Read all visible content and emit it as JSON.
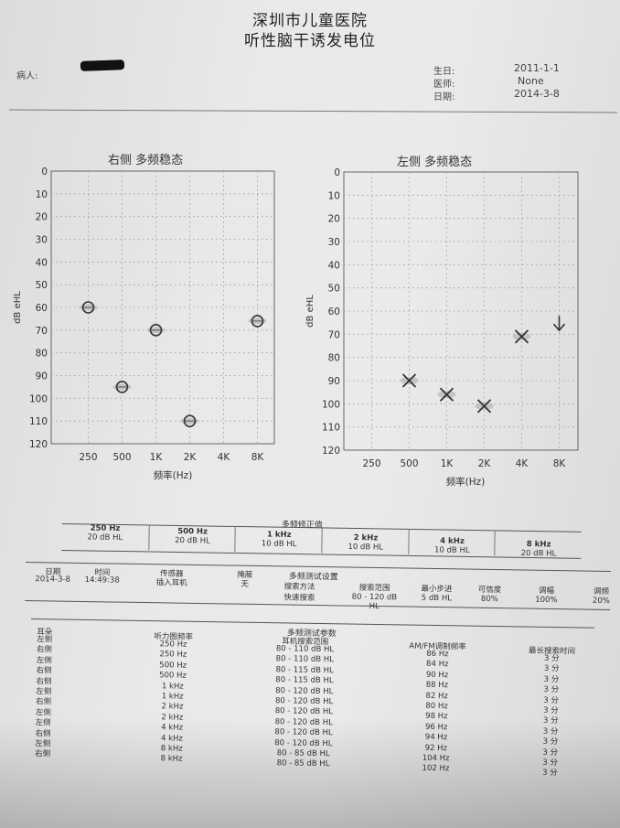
{
  "header": {
    "hospital": "深圳市儿童医院",
    "report_title": "听性脑干诱发电位",
    "patient_label": "病人:",
    "birthdate_label": "生日:",
    "birthdate_value": "2011-1-1",
    "doctor_label": "医师:",
    "doctor_value": "None",
    "date_label": "日期:",
    "date_value": "2014-3-8"
  },
  "charts": {
    "right": {
      "title": "右侧  多频稳态"
    },
    "left": {
      "title": "左侧  多频稳态"
    }
  },
  "chart_data": [
    {
      "type": "scatter",
      "title": "右侧  多频稳态",
      "ylabel": "dB eHL",
      "xlabel": "频率(Hz)",
      "categories": [
        "250",
        "500",
        "1K",
        "2K",
        "4K",
        "8K"
      ],
      "y_ticks": [
        "0",
        "10",
        "20",
        "30",
        "40",
        "50",
        "60",
        "70",
        "80",
        "90",
        "100",
        "110",
        "120"
      ],
      "ylim": [
        0,
        120
      ],
      "y_inverted": true,
      "grid": "dashed",
      "marker": "circle",
      "points": [
        {
          "x": "250",
          "y": 60
        },
        {
          "x": "500",
          "y": 95
        },
        {
          "x": "1K",
          "y": 70
        },
        {
          "x": "2K",
          "y": 110
        },
        {
          "x": "8K",
          "y": 66
        }
      ]
    },
    {
      "type": "scatter",
      "title": "左侧  多频稳态",
      "ylabel": "dB eHL",
      "xlabel": "频率(Hz)",
      "categories": [
        "250",
        "500",
        "1K",
        "2K",
        "4K",
        "8K"
      ],
      "y_ticks": [
        "0",
        "10",
        "20",
        "30",
        "40",
        "50",
        "60",
        "70",
        "80",
        "90",
        "100",
        "110",
        "120"
      ],
      "ylim": [
        0,
        120
      ],
      "y_inverted": true,
      "grid": "dashed",
      "marker": "x",
      "points": [
        {
          "x": "500",
          "y": 90
        },
        {
          "x": "1K",
          "y": 96
        },
        {
          "x": "2K",
          "y": 101
        },
        {
          "x": "4K",
          "y": 71
        },
        {
          "x": "8K",
          "y": 66,
          "marker": "arrow-down",
          "note": "no response"
        }
      ]
    }
  ],
  "correction": {
    "title": "多频修正值",
    "columns": [
      {
        "freq": "250 Hz",
        "value": "20 dB HL"
      },
      {
        "freq": "500 Hz",
        "value": "20 dB HL"
      },
      {
        "freq": "1 kHz",
        "value": "10 dB HL"
      },
      {
        "freq": "2 kHz",
        "value": "10 dB HL"
      },
      {
        "freq": "4 kHz",
        "value": "10 dB HL"
      },
      {
        "freq": "8 kHz",
        "value": "20 dB HL"
      }
    ]
  },
  "settings": {
    "section_title": "多频测试设置",
    "headers": [
      "日期",
      "时间",
      "传感器",
      "掩蔽",
      "搜索方法",
      "搜索范围",
      "最小步进",
      "可信度",
      "调幅",
      "调频"
    ],
    "values": [
      "2014-3-8",
      "14:49:38",
      "插入耳机",
      "无",
      "快速搜索",
      "80 - 120 dB HL",
      "5 dB HL",
      "80%",
      "100%",
      "20%"
    ]
  },
  "params": {
    "section_title": "多频测试参数",
    "headers": [
      "耳朵",
      "听力图频率",
      "耳机搜索范围",
      "AM/FM调制频率",
      "最长搜索时间"
    ],
    "rows": [
      [
        "左侧",
        "250 Hz",
        "80 - 110 dB HL",
        "86 Hz",
        "3 分"
      ],
      [
        "右侧",
        "250 Hz",
        "80 - 110 dB HL",
        "84 Hz",
        "3 分"
      ],
      [
        "左侧",
        "500 Hz",
        "80 - 115 dB HL",
        "90 Hz",
        "3 分"
      ],
      [
        "右侧",
        "500 Hz",
        "80 - 115 dB HL",
        "88 Hz",
        "3 分"
      ],
      [
        "右侧",
        "1 kHz",
        "80 - 120 dB HL",
        "82 Hz",
        "3 分"
      ],
      [
        "左侧",
        "1 kHz",
        "80 - 120 dB HL",
        "80 Hz",
        "3 分"
      ],
      [
        "右侧",
        "2 kHz",
        "80 - 120 dB HL",
        "98 Hz",
        "3 分"
      ],
      [
        "左侧",
        "2 kHz",
        "80 - 120 dB HL",
        "96 Hz",
        "3 分"
      ],
      [
        "左侧",
        "4 kHz",
        "80 - 120 dB HL",
        "94 Hz",
        "3 分"
      ],
      [
        "右侧",
        "4 kHz",
        "80 - 120 dB HL",
        "92 Hz",
        "3 分"
      ],
      [
        "左侧",
        "8 kHz",
        "80 - 85 dB HL",
        "104 Hz",
        "3 分"
      ],
      [
        "右侧",
        "8 kHz",
        "80 - 85 dB HL",
        "102 Hz",
        "3 分"
      ]
    ]
  }
}
